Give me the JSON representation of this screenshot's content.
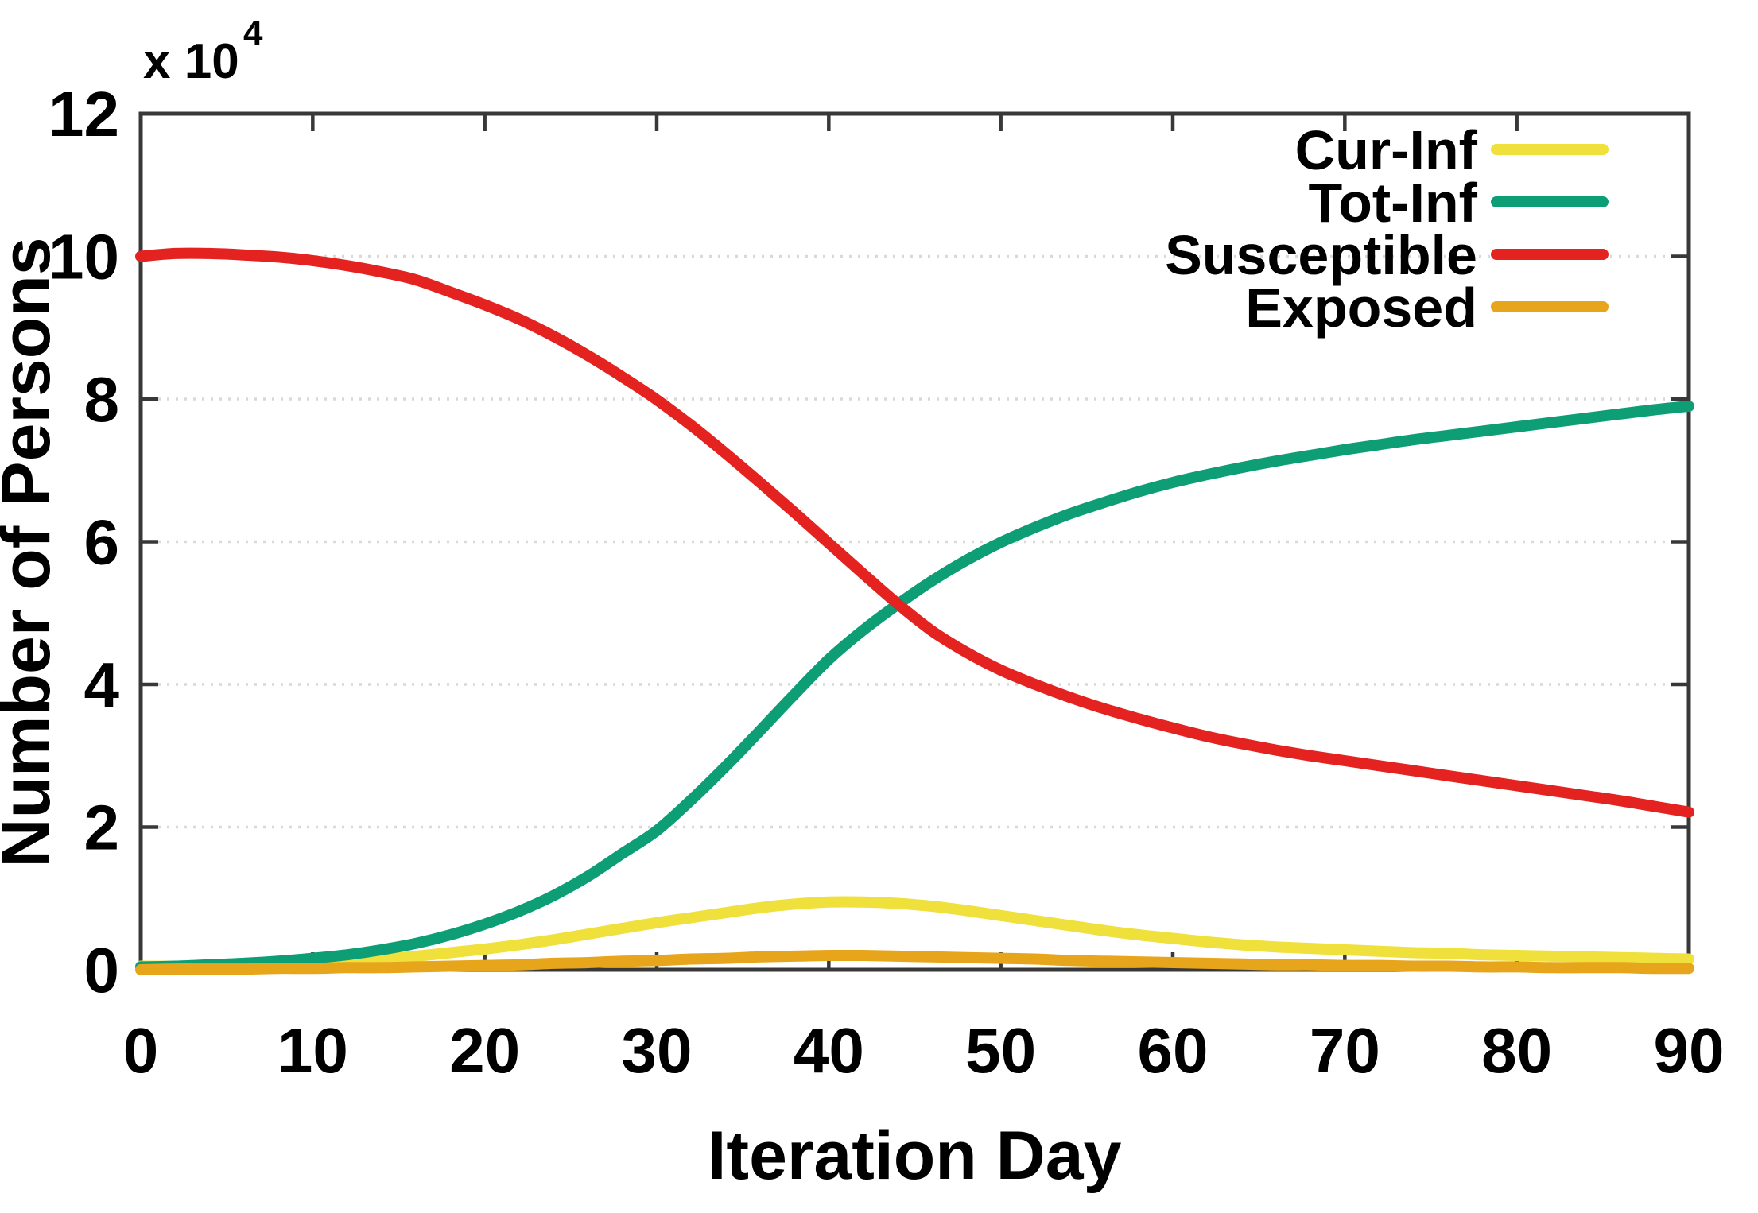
{
  "figure": {
    "offset_label": "x 10",
    "offset_exponent": "4",
    "y_axis_label": "Number of Persons",
    "x_axis_label": "Iteration Day",
    "x_ticks": [
      0,
      10,
      20,
      30,
      40,
      50,
      60,
      70,
      80,
      90
    ],
    "y_ticks": [
      0,
      2,
      4,
      6,
      8,
      10,
      12
    ],
    "grid_y": [
      2,
      4,
      6,
      8,
      10
    ]
  },
  "styles": {
    "background": "#ffffff",
    "frame_color": "#383838",
    "grid_color": "#d9d9d9",
    "text_color": "#000000",
    "series_colors": {
      "cur_inf": "#EFE03B",
      "tot_inf": "#0D9E76",
      "susceptible": "#E42320",
      "exposed": "#E7A51B"
    }
  },
  "chart_data": {
    "type": "line",
    "title": "",
    "xlabel": "Iteration Day",
    "ylabel": "Number of Persons",
    "y_unit_multiplier": "x 10^4 persons",
    "xlim": [
      0,
      90
    ],
    "ylim": [
      0,
      12
    ],
    "grid": "horizontal dotted gridlines at y = 2,4,6,8,10",
    "legend_position": "top-right inside, labels left of line samples",
    "x": [
      0,
      2,
      4,
      6,
      8,
      10,
      12,
      14,
      16,
      18,
      20,
      22,
      24,
      26,
      28,
      30,
      32,
      34,
      36,
      38,
      40,
      42,
      44,
      46,
      48,
      50,
      52,
      54,
      56,
      58,
      60,
      62,
      64,
      66,
      68,
      70,
      72,
      74,
      76,
      78,
      80,
      82,
      84,
      86,
      88,
      90
    ],
    "series": [
      {
        "name": "Cur-Inf",
        "color": "#EFE03B",
        "values": [
          0.05,
          0.05,
          0.06,
          0.07,
          0.08,
          0.1,
          0.12,
          0.15,
          0.19,
          0.24,
          0.29,
          0.35,
          0.42,
          0.5,
          0.58,
          0.66,
          0.73,
          0.8,
          0.87,
          0.92,
          0.95,
          0.95,
          0.93,
          0.89,
          0.83,
          0.76,
          0.69,
          0.62,
          0.55,
          0.49,
          0.44,
          0.39,
          0.35,
          0.32,
          0.3,
          0.28,
          0.26,
          0.24,
          0.23,
          0.21,
          0.2,
          0.19,
          0.18,
          0.17,
          0.16,
          0.15
        ]
      },
      {
        "name": "Tot-Inf",
        "color": "#0D9E76",
        "values": [
          0.04,
          0.05,
          0.07,
          0.09,
          0.12,
          0.16,
          0.21,
          0.28,
          0.37,
          0.49,
          0.64,
          0.82,
          1.04,
          1.31,
          1.63,
          1.95,
          2.38,
          2.85,
          3.35,
          3.86,
          4.35,
          4.76,
          5.12,
          5.45,
          5.74,
          5.99,
          6.2,
          6.39,
          6.55,
          6.7,
          6.83,
          6.94,
          7.04,
          7.13,
          7.21,
          7.29,
          7.36,
          7.43,
          7.49,
          7.55,
          7.61,
          7.67,
          7.73,
          7.79,
          7.85,
          7.9
        ]
      },
      {
        "name": "Susceptible",
        "color": "#E42320",
        "values": [
          10.0,
          10.04,
          10.04,
          10.02,
          9.99,
          9.94,
          9.87,
          9.78,
          9.67,
          9.5,
          9.32,
          9.12,
          8.88,
          8.61,
          8.31,
          7.99,
          7.63,
          7.24,
          6.83,
          6.41,
          5.98,
          5.55,
          5.13,
          4.75,
          4.45,
          4.2,
          4.0,
          3.82,
          3.66,
          3.52,
          3.39,
          3.27,
          3.17,
          3.08,
          3.0,
          2.93,
          2.86,
          2.79,
          2.72,
          2.65,
          2.58,
          2.51,
          2.44,
          2.37,
          2.29,
          2.21
        ]
      },
      {
        "name": "Exposed",
        "color": "#E7A51B",
        "values": [
          0.0,
          0.01,
          0.01,
          0.01,
          0.02,
          0.02,
          0.03,
          0.03,
          0.04,
          0.05,
          0.06,
          0.07,
          0.09,
          0.1,
          0.12,
          0.13,
          0.15,
          0.16,
          0.18,
          0.19,
          0.2,
          0.2,
          0.19,
          0.18,
          0.17,
          0.16,
          0.15,
          0.13,
          0.12,
          0.11,
          0.1,
          0.09,
          0.08,
          0.07,
          0.07,
          0.06,
          0.06,
          0.05,
          0.05,
          0.04,
          0.04,
          0.03,
          0.03,
          0.03,
          0.02,
          0.02
        ]
      }
    ]
  }
}
